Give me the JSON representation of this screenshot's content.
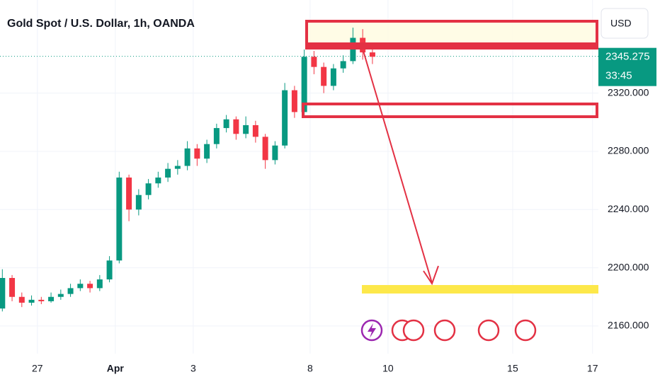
{
  "chart_data": {
    "type": "candlestick",
    "title": "Gold Spot / U.S. Dollar, 1h, OANDA",
    "currency": "USD",
    "last_price": 2345.275,
    "countdown": "33:45",
    "up_color": "#089981",
    "down_color": "#f23645",
    "grid": true,
    "xlim": [
      -0.96,
      14.4
    ],
    "ylim": [
      2141,
      2384
    ],
    "xticks": [
      {
        "value": 0,
        "label": "27"
      },
      {
        "value": 2,
        "label": "Apr"
      },
      {
        "value": 4,
        "label": "3"
      },
      {
        "value": 7,
        "label": "8"
      },
      {
        "value": 9,
        "label": "10"
      },
      {
        "value": 12.2,
        "label": "15"
      },
      {
        "value": 14.25,
        "label": "17"
      }
    ],
    "yticks": [
      {
        "value": 2160,
        "label": "2160.000"
      },
      {
        "value": 2200,
        "label": "2200.000"
      },
      {
        "value": 2240,
        "label": "2240.000"
      },
      {
        "value": 2280,
        "label": "2280.000"
      },
      {
        "value": 2320,
        "label": "2320.000"
      }
    ],
    "x": [
      -0.9,
      -0.65,
      -0.4,
      -0.15,
      0.1,
      0.35,
      0.6,
      0.85,
      1.1,
      1.35,
      1.6,
      1.85,
      2.1,
      2.35,
      2.6,
      2.85,
      3.1,
      3.35,
      3.6,
      3.85,
      4.1,
      4.35,
      4.6,
      4.85,
      5.1,
      5.35,
      5.6,
      5.85,
      6.1,
      6.35,
      6.6,
      6.85,
      7.1,
      7.35,
      7.6,
      7.85,
      8.1,
      8.35,
      8.6
    ],
    "open": [
      2172,
      2193,
      2180,
      2176,
      2178,
      2177,
      2180,
      2182,
      2186,
      2189,
      2186,
      2192,
      2205,
      2262,
      2240,
      2250,
      2258,
      2262,
      2268,
      2270,
      2282,
      2275,
      2285,
      2296,
      2302,
      2292,
      2298,
      2290,
      2274,
      2284,
      2322,
      2307,
      2345,
      2338,
      2325,
      2337,
      2342,
      2358,
      2348
    ],
    "high": [
      2199,
      2195,
      2183,
      2181,
      2180,
      2183,
      2185,
      2189,
      2192,
      2191,
      2195,
      2208,
      2266,
      2264,
      2254,
      2261,
      2266,
      2272,
      2274,
      2287,
      2285,
      2288,
      2299,
      2305,
      2304,
      2304,
      2301,
      2292,
      2287,
      2327,
      2325,
      2350,
      2349,
      2341,
      2340,
      2346,
      2365,
      2364,
      2352
    ],
    "low": [
      2170,
      2177,
      2173,
      2174,
      2175,
      2176,
      2178,
      2180,
      2184,
      2183,
      2184,
      2190,
      2203,
      2232,
      2236,
      2247,
      2255,
      2259,
      2264,
      2267,
      2270,
      2272,
      2282,
      2293,
      2288,
      2289,
      2286,
      2268,
      2271,
      2282,
      2303,
      2304,
      2333,
      2320,
      2322,
      2334,
      2340,
      2343,
      2340
    ],
    "close": [
      2193,
      2180,
      2176,
      2178,
      2177,
      2180,
      2182,
      2186,
      2189,
      2186,
      2192,
      2205,
      2262,
      2240,
      2250,
      2258,
      2262,
      2268,
      2270,
      2282,
      2275,
      2285,
      2296,
      2302,
      2292,
      2298,
      2290,
      2274,
      2284,
      2322,
      2307,
      2345,
      2338,
      2325,
      2337,
      2342,
      2358,
      2348,
      2345
    ]
  }
}
